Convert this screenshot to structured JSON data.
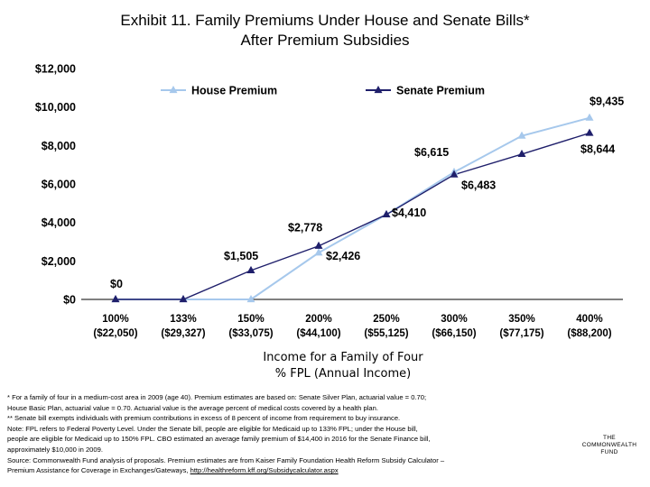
{
  "title": {
    "line1": "Exhibit 11. Family Premiums Under House and Senate Bills*",
    "line2": "After Premium Subsidies"
  },
  "chart_data": {
    "type": "line",
    "categories": [
      "100%",
      "133%",
      "150%",
      "200%",
      "250%",
      "300%",
      "350%",
      "400%"
    ],
    "category_sublabels": [
      "($22,050)",
      "($29,327)",
      "($33,075)",
      "($44,100)",
      "($55,125)",
      "($66,150)",
      "($77,175)",
      "($88,200)"
    ],
    "xlabel": "Income for a Family of Four\n% FPL (Annual Income)",
    "ylabel": "",
    "ylim": [
      0,
      12000
    ],
    "yticks": [
      0,
      2000,
      4000,
      6000,
      8000,
      10000,
      12000
    ],
    "ytick_labels": [
      "$0",
      "$2,000",
      "$4,000",
      "$6,000",
      "$8,000",
      "$10,000",
      "$12,000"
    ],
    "grid": false,
    "legend": "top",
    "series": [
      {
        "name": "House Premium",
        "color": "#a6c8ec",
        "marker": "triangle",
        "values": [
          0,
          0,
          0,
          2426,
          4410,
          6615,
          8500,
          9435
        ],
        "data_labels": [
          "",
          "",
          "",
          "$2,426",
          "",
          "$6,615",
          "",
          "$9,435"
        ]
      },
      {
        "name": "Senate Premium",
        "color": "#1f1f6b",
        "marker": "triangle",
        "values": [
          0,
          0,
          1505,
          2778,
          4410,
          6483,
          7550,
          8644
        ],
        "data_labels": [
          "$0",
          "",
          "$1,505",
          "$2,778",
          "$4,410",
          "$6,483",
          "",
          "$8,644"
        ]
      }
    ]
  },
  "footnotes": [
    "* For a family of four in a medium-cost area in 2009 (age 40). Premium estimates are based on: Senate Silver Plan, actuarial value = 0.70;",
    "House Basic Plan, actuarial value = 0.70. Actuarial value is the average percent of medical costs covered by a health plan.",
    "** Senate bill exempts individuals with premium contributions in excess of 8 percent of income from requirement to buy insurance.",
    "Note: FPL refers to Federal Poverty Level. Under the Senate bill, people are eligible for Medicaid up to 133% FPL; under the House bill,",
    "people are eligible for Medicaid up to 150% FPL. CBO estimated an average family premium of $14,400 in 2016 for the Senate Finance bill,",
    "approximately $10,000 in 2009.",
    "Source: Commonwealth Fund analysis of proposals. Premium estimates are from Kaiser Family Foundation Health Reform Subsidy Calculator –",
    "Premium Assistance for Coverage in Exchanges/Gateways, "
  ],
  "footnote_link": "http://healthreform.kff.org/Subsidycalculator.aspx",
  "logo": {
    "line1": "THE",
    "line2": "COMMONWEALTH",
    "line3": "FUND"
  }
}
